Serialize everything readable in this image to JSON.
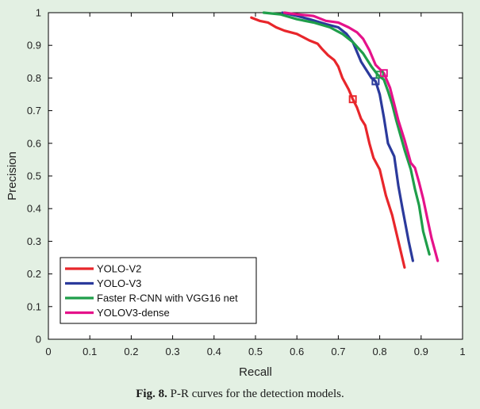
{
  "caption": {
    "label": "Fig. 8.",
    "text": "P-R curves for the detection models."
  },
  "chart_data": {
    "type": "line",
    "xlabel": "Recall",
    "ylabel": "Precision",
    "xlim": [
      0,
      1
    ],
    "ylim": [
      0,
      1
    ],
    "xticks": [
      "0",
      "0.1",
      "0.2",
      "0.3",
      "0.4",
      "0.5",
      "0.6",
      "0.7",
      "0.8",
      "0.9",
      "1"
    ],
    "yticks": [
      "0",
      "0.1",
      "0.2",
      "0.3",
      "0.4",
      "0.5",
      "0.6",
      "0.7",
      "0.8",
      "0.9",
      "1"
    ],
    "grid": false,
    "legend_position": "bottom-left",
    "series": [
      {
        "name": "YOLO-V2",
        "color": "#e8262b",
        "marker": [
          0.735,
          0.735
        ],
        "points": [
          [
            0.49,
            0.985
          ],
          [
            0.51,
            0.975
          ],
          [
            0.53,
            0.97
          ],
          [
            0.55,
            0.955
          ],
          [
            0.57,
            0.945
          ],
          [
            0.6,
            0.935
          ],
          [
            0.63,
            0.915
          ],
          [
            0.65,
            0.905
          ],
          [
            0.66,
            0.89
          ],
          [
            0.675,
            0.87
          ],
          [
            0.69,
            0.855
          ],
          [
            0.7,
            0.835
          ],
          [
            0.71,
            0.8
          ],
          [
            0.725,
            0.765
          ],
          [
            0.735,
            0.735
          ],
          [
            0.745,
            0.71
          ],
          [
            0.755,
            0.675
          ],
          [
            0.765,
            0.655
          ],
          [
            0.775,
            0.6
          ],
          [
            0.785,
            0.555
          ],
          [
            0.8,
            0.52
          ],
          [
            0.815,
            0.44
          ],
          [
            0.83,
            0.38
          ],
          [
            0.845,
            0.3
          ],
          [
            0.86,
            0.22
          ]
        ]
      },
      {
        "name": "YOLO-V3",
        "color": "#2b3a9c",
        "marker": [
          0.79,
          0.79
        ],
        "points": [
          [
            0.565,
            1.0
          ],
          [
            0.6,
            0.99
          ],
          [
            0.63,
            0.98
          ],
          [
            0.67,
            0.965
          ],
          [
            0.7,
            0.955
          ],
          [
            0.72,
            0.935
          ],
          [
            0.735,
            0.91
          ],
          [
            0.745,
            0.88
          ],
          [
            0.755,
            0.85
          ],
          [
            0.765,
            0.83
          ],
          [
            0.78,
            0.8
          ],
          [
            0.79,
            0.79
          ],
          [
            0.8,
            0.75
          ],
          [
            0.81,
            0.68
          ],
          [
            0.82,
            0.6
          ],
          [
            0.835,
            0.56
          ],
          [
            0.845,
            0.47
          ],
          [
            0.855,
            0.4
          ],
          [
            0.87,
            0.3
          ],
          [
            0.88,
            0.24
          ]
        ]
      },
      {
        "name": "Faster R-CNN with VGG16 net",
        "color": "#1f9e4a",
        "marker": [
          0.8,
          0.81
        ],
        "points": [
          [
            0.52,
            1.0
          ],
          [
            0.56,
            0.995
          ],
          [
            0.6,
            0.98
          ],
          [
            0.64,
            0.97
          ],
          [
            0.68,
            0.955
          ],
          [
            0.71,
            0.935
          ],
          [
            0.735,
            0.91
          ],
          [
            0.76,
            0.875
          ],
          [
            0.78,
            0.835
          ],
          [
            0.795,
            0.81
          ],
          [
            0.81,
            0.795
          ],
          [
            0.82,
            0.76
          ],
          [
            0.83,
            0.72
          ],
          [
            0.84,
            0.67
          ],
          [
            0.85,
            0.625
          ],
          [
            0.86,
            0.58
          ],
          [
            0.875,
            0.52
          ],
          [
            0.885,
            0.46
          ],
          [
            0.895,
            0.41
          ],
          [
            0.905,
            0.33
          ],
          [
            0.92,
            0.26
          ]
        ]
      },
      {
        "name": "YOLOV3-dense",
        "color": "#e5128a",
        "marker": [
          0.81,
          0.815
        ],
        "points": [
          [
            0.57,
            1.0
          ],
          [
            0.6,
            0.995
          ],
          [
            0.64,
            0.99
          ],
          [
            0.67,
            0.975
          ],
          [
            0.7,
            0.97
          ],
          [
            0.725,
            0.955
          ],
          [
            0.745,
            0.94
          ],
          [
            0.76,
            0.92
          ],
          [
            0.775,
            0.885
          ],
          [
            0.79,
            0.84
          ],
          [
            0.81,
            0.815
          ],
          [
            0.825,
            0.77
          ],
          [
            0.835,
            0.72
          ],
          [
            0.845,
            0.67
          ],
          [
            0.86,
            0.61
          ],
          [
            0.875,
            0.54
          ],
          [
            0.885,
            0.525
          ],
          [
            0.895,
            0.48
          ],
          [
            0.905,
            0.43
          ],
          [
            0.915,
            0.37
          ],
          [
            0.925,
            0.31
          ],
          [
            0.94,
            0.24
          ]
        ]
      }
    ]
  }
}
